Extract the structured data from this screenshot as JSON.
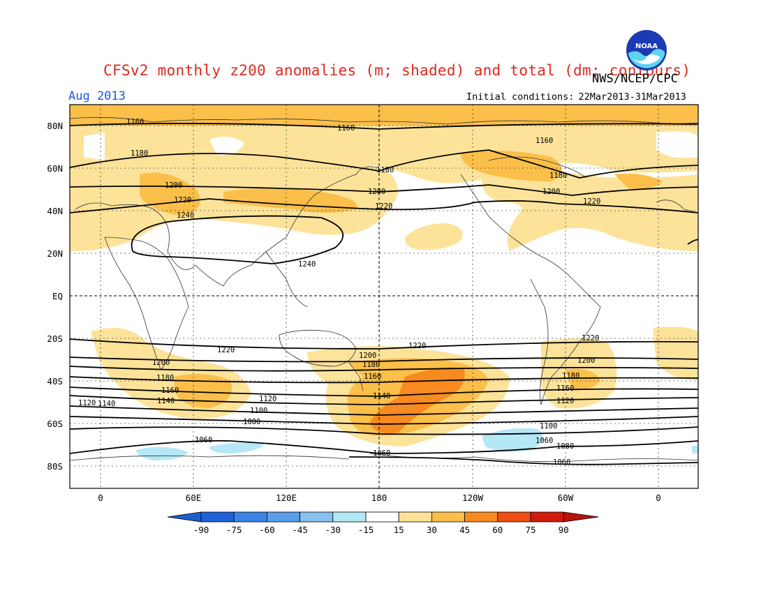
{
  "header": {
    "title": "CFSv2 monthly z200 anomalies (m; shaded) and total (dm; contours)",
    "agency": "NWS/NCEP/CPC",
    "month": "Aug 2013",
    "ic_label": "Initial conditions:",
    "ic_range": "22Mar2013-31Mar2013"
  },
  "logo": {
    "name": "noaa-logo",
    "text": "NOAA"
  },
  "axes": {
    "lat_labels": [
      "80N",
      "60N",
      "40N",
      "20N",
      "EQ",
      "20S",
      "40S",
      "60S",
      "80S"
    ],
    "lon_labels": [
      "0",
      "60E",
      "120E",
      "180",
      "120W",
      "60W",
      "0"
    ]
  },
  "colorbar": {
    "labels": [
      "-90",
      "-75",
      "-60",
      "-45",
      "-30",
      "-15",
      "15",
      "30",
      "45",
      "60",
      "75",
      "90"
    ],
    "colors": [
      "#1f62d6",
      "#3b84e4",
      "#5a9de8",
      "#87c2f0",
      "#b5e8f5",
      "#ffffff",
      "#fde39a",
      "#fbbf4a",
      "#f78a20",
      "#ee4e12",
      "#cf1a0c"
    ],
    "low_color": "#1e5fd0",
    "high_color": "#b8120c"
  },
  "contours": {
    "labels": [
      "1160",
      "1160",
      "1160",
      "1180",
      "1180",
      "1180",
      "1200",
      "1200",
      "1200",
      "1220",
      "1220",
      "1220",
      "1240",
      "1240",
      "1220",
      "1220",
      "1200",
      "1200",
      "1180",
      "1180",
      "1160",
      "1160",
      "1140",
      "1140",
      "1120",
      "1120",
      "1100",
      "1100",
      "1080",
      "1080",
      "1060",
      "1060",
      "1060",
      "1060",
      "1120",
      "1140",
      "1160",
      "1180",
      "1200",
      "1220"
    ]
  },
  "colors": {
    "title": "#e0281e",
    "month": "#1a56e8"
  }
}
